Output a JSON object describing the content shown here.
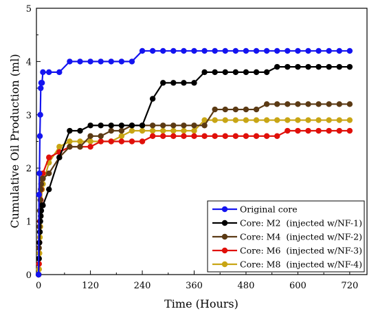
{
  "chart_data": {
    "type": "line",
    "xlabel": "Time (Hours)",
    "ylabel": "Cumulative Oil Production (ml)",
    "xlim": [
      -5,
      760
    ],
    "ylim": [
      0,
      5
    ],
    "x_ticks": [
      0,
      120,
      240,
      360,
      480,
      600,
      720
    ],
    "x_tick_labels": [
      "0",
      "120",
      "240",
      "360",
      "480",
      "600",
      "720"
    ],
    "y_ticks": [
      0,
      1,
      2,
      3,
      4,
      5
    ],
    "y_tick_labels": [
      "0",
      "1",
      "2",
      "3",
      "4",
      "5"
    ],
    "legend_placement": "bottom-right",
    "grid": false,
    "series": [
      {
        "name": "Original core",
        "color": "#1414f0",
        "x": [
          0,
          1,
          2,
          3,
          4,
          5,
          6,
          8,
          10,
          24,
          48,
          72,
          96,
          120,
          144,
          168,
          192,
          216,
          240,
          264,
          288,
          312,
          336,
          360,
          384,
          408,
          432,
          456,
          480,
          504,
          528,
          552,
          576,
          600,
          624,
          648,
          672,
          696,
          720
        ],
        "y": [
          0,
          1.5,
          1.9,
          2.6,
          3.0,
          3.5,
          3.6,
          3.6,
          3.8,
          3.8,
          3.8,
          4.0,
          4.0,
          4.0,
          4.0,
          4.0,
          4.0,
          4.0,
          4.2,
          4.2,
          4.2,
          4.2,
          4.2,
          4.2,
          4.2,
          4.2,
          4.2,
          4.2,
          4.2,
          4.2,
          4.2,
          4.2,
          4.2,
          4.2,
          4.2,
          4.2,
          4.2,
          4.2,
          4.2
        ]
      },
      {
        "name": "Core: M2  (injected w/NF-1)",
        "color": "#000000",
        "x": [
          0,
          1,
          2,
          3,
          4,
          5,
          6,
          8,
          10,
          24,
          48,
          72,
          96,
          120,
          144,
          168,
          192,
          216,
          240,
          264,
          288,
          312,
          336,
          360,
          384,
          408,
          432,
          456,
          480,
          504,
          528,
          552,
          576,
          600,
          624,
          648,
          672,
          696,
          720
        ],
        "y": [
          0,
          0.3,
          0.6,
          0.8,
          1.0,
          1.1,
          1.2,
          1.3,
          1.3,
          1.6,
          2.2,
          2.7,
          2.7,
          2.8,
          2.8,
          2.8,
          2.8,
          2.8,
          2.8,
          3.3,
          3.6,
          3.6,
          3.6,
          3.6,
          3.8,
          3.8,
          3.8,
          3.8,
          3.8,
          3.8,
          3.8,
          3.9,
          3.9,
          3.9,
          3.9,
          3.9,
          3.9,
          3.9,
          3.9
        ]
      },
      {
        "name": "Core: M4  (injected w/NF-2)",
        "color": "#5b3a14",
        "x": [
          0,
          1,
          2,
          3,
          4,
          5,
          6,
          8,
          10,
          24,
          48,
          72,
          96,
          120,
          144,
          168,
          192,
          216,
          240,
          264,
          288,
          312,
          336,
          360,
          384,
          408,
          432,
          456,
          480,
          504,
          528,
          552,
          576,
          600,
          624,
          648,
          672,
          696,
          720
        ],
        "y": [
          0,
          0.5,
          0.9,
          1.2,
          1.4,
          1.6,
          1.7,
          1.8,
          1.8,
          1.9,
          2.2,
          2.4,
          2.4,
          2.6,
          2.6,
          2.7,
          2.7,
          2.8,
          2.8,
          2.8,
          2.8,
          2.8,
          2.8,
          2.8,
          2.8,
          3.1,
          3.1,
          3.1,
          3.1,
          3.1,
          3.2,
          3.2,
          3.2,
          3.2,
          3.2,
          3.2,
          3.2,
          3.2,
          3.2
        ]
      },
      {
        "name": "Core: M6  (injected w/NF-3)",
        "color": "#e0100a",
        "x": [
          0,
          1,
          2,
          3,
          4,
          5,
          6,
          8,
          10,
          24,
          48,
          72,
          96,
          120,
          144,
          168,
          192,
          216,
          240,
          264,
          288,
          312,
          336,
          360,
          384,
          408,
          432,
          456,
          480,
          504,
          528,
          552,
          576,
          600,
          624,
          648,
          672,
          696,
          720
        ],
        "y": [
          0,
          0.2,
          0.6,
          1.0,
          1.2,
          1.4,
          1.6,
          1.8,
          1.9,
          2.2,
          2.3,
          2.4,
          2.4,
          2.4,
          2.5,
          2.5,
          2.5,
          2.5,
          2.5,
          2.6,
          2.6,
          2.6,
          2.6,
          2.6,
          2.6,
          2.6,
          2.6,
          2.6,
          2.6,
          2.6,
          2.6,
          2.6,
          2.7,
          2.7,
          2.7,
          2.7,
          2.7,
          2.7,
          2.7
        ]
      },
      {
        "name": "Core: M8  (injected w/NF-4)",
        "color": "#c8a514",
        "x": [
          0,
          1,
          2,
          3,
          4,
          5,
          6,
          8,
          10,
          24,
          48,
          72,
          96,
          120,
          144,
          168,
          192,
          216,
          240,
          264,
          288,
          312,
          336,
          360,
          384,
          408,
          432,
          456,
          480,
          504,
          528,
          552,
          576,
          600,
          624,
          648,
          672,
          696,
          720
        ],
        "y": [
          0,
          0.1,
          0.4,
          0.7,
          0.9,
          1.1,
          1.3,
          1.6,
          1.7,
          2.1,
          2.4,
          2.5,
          2.5,
          2.5,
          2.5,
          2.5,
          2.6,
          2.7,
          2.7,
          2.7,
          2.7,
          2.7,
          2.7,
          2.7,
          2.9,
          2.9,
          2.9,
          2.9,
          2.9,
          2.9,
          2.9,
          2.9,
          2.9,
          2.9,
          2.9,
          2.9,
          2.9,
          2.9,
          2.9
        ]
      }
    ]
  }
}
